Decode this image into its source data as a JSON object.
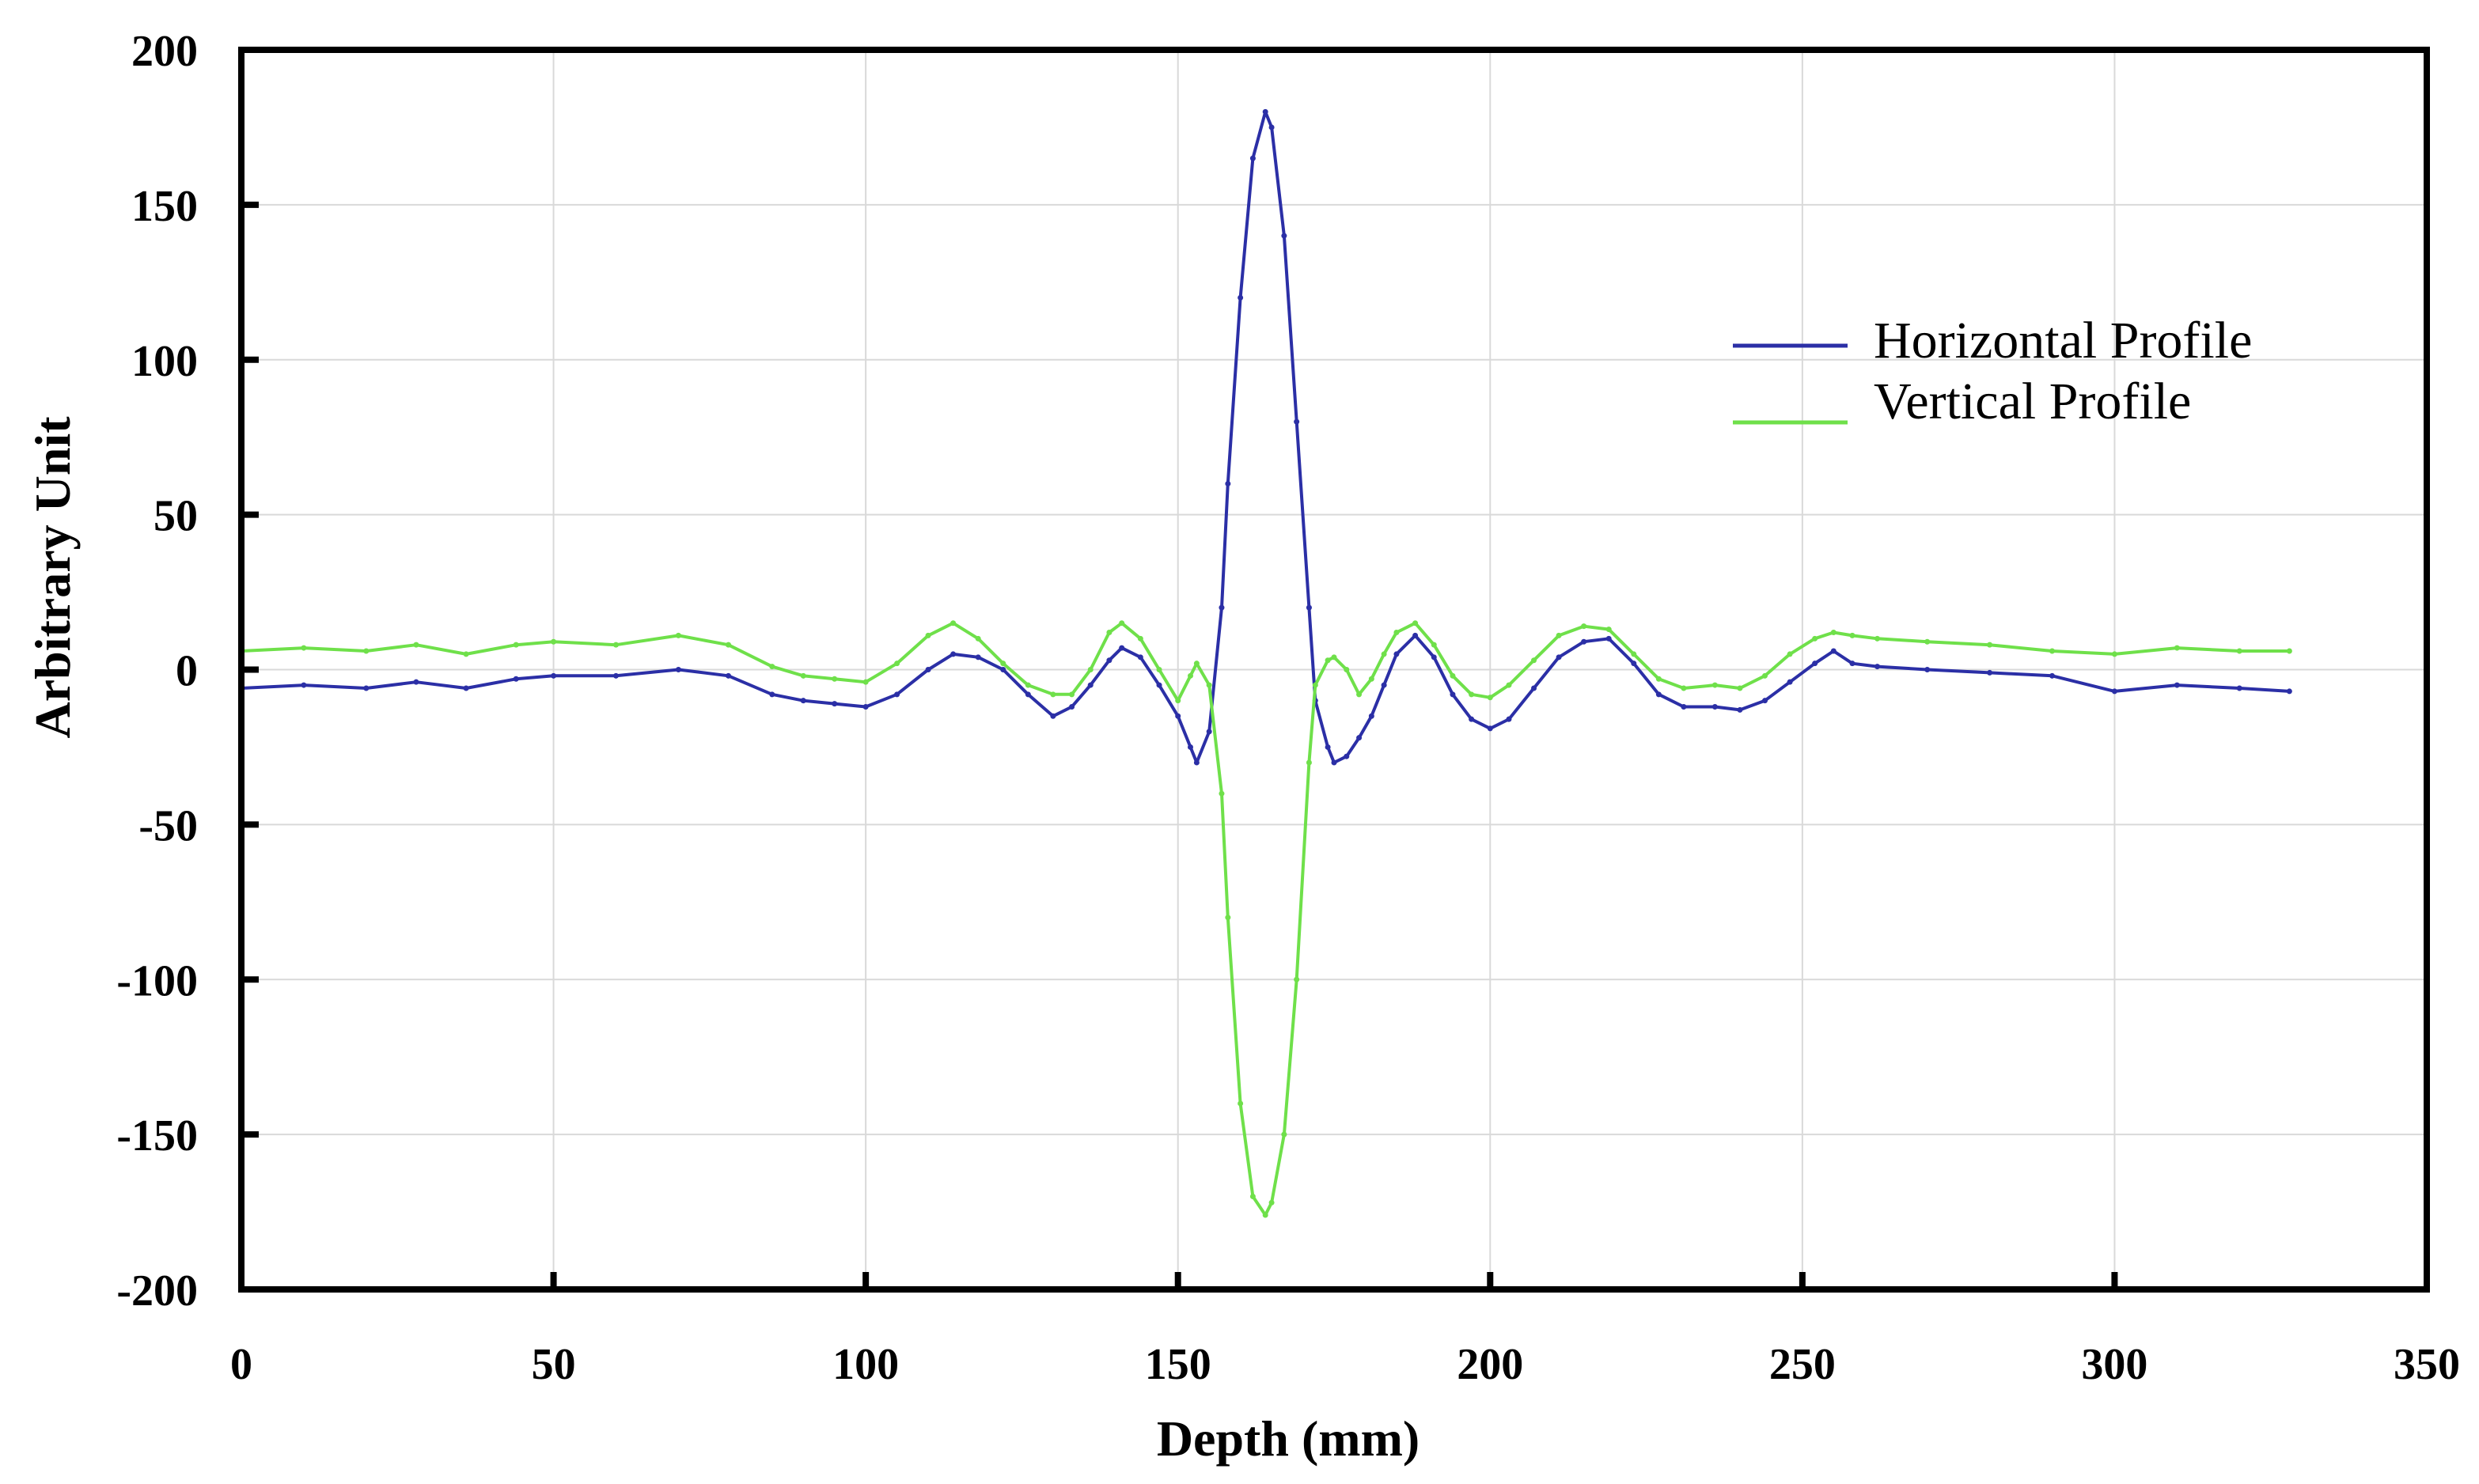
{
  "colors": {
    "horizontal": "#2b2fa6",
    "vertical": "#6fe04a",
    "axis": "#000000",
    "grid": "#d9d9d9",
    "background": "#ffffff"
  },
  "chart_data": {
    "type": "line",
    "title": "",
    "xlabel": "Depth (mm)",
    "ylabel": "Arbitrary Unit",
    "xlim": [
      0,
      350
    ],
    "ylim": [
      -200,
      200
    ],
    "x_ticks": [
      0,
      50,
      100,
      150,
      200,
      250,
      300,
      350
    ],
    "y_ticks": [
      -200,
      -150,
      -100,
      -50,
      0,
      50,
      100,
      150,
      200
    ],
    "grid": true,
    "legend_position": "top-right",
    "series": [
      {
        "name": "Horizontal Profile",
        "color": "#2b2fa6",
        "x": [
          0,
          10,
          20,
          28,
          36,
          44,
          50,
          60,
          70,
          78,
          85,
          90,
          95,
          100,
          105,
          110,
          114,
          118,
          122,
          126,
          130,
          133,
          136,
          139,
          141,
          144,
          147,
          150,
          152,
          153,
          155,
          157,
          158,
          160,
          162,
          164,
          165,
          167,
          169,
          171,
          172,
          174,
          175,
          177,
          179,
          181,
          183,
          185,
          188,
          191,
          194,
          197,
          200,
          203,
          207,
          211,
          215,
          219,
          223,
          227,
          231,
          236,
          240,
          244,
          248,
          252,
          255,
          258,
          262,
          270,
          280,
          290,
          300,
          310,
          320,
          328
        ],
        "y": [
          -6,
          -5,
          -6,
          -4,
          -6,
          -3,
          -2,
          -2,
          0,
          -2,
          -8,
          -10,
          -11,
          -12,
          -8,
          0,
          5,
          4,
          0,
          -8,
          -15,
          -12,
          -5,
          3,
          7,
          4,
          -5,
          -15,
          -25,
          -30,
          -20,
          20,
          60,
          120,
          165,
          180,
          175,
          140,
          80,
          20,
          -10,
          -25,
          -30,
          -28,
          -22,
          -15,
          -5,
          5,
          11,
          4,
          -8,
          -16,
          -19,
          -16,
          -6,
          4,
          9,
          10,
          2,
          -8,
          -12,
          -12,
          -13,
          -10,
          -4,
          2,
          6,
          2,
          1,
          0,
          -1,
          -2,
          -7,
          -5,
          -6,
          -7
        ]
      },
      {
        "name": "Vertical Profile",
        "color": "#6fe04a",
        "x": [
          0,
          10,
          20,
          28,
          36,
          44,
          50,
          60,
          70,
          78,
          85,
          90,
          95,
          100,
          105,
          110,
          114,
          118,
          122,
          126,
          130,
          133,
          136,
          139,
          141,
          144,
          147,
          150,
          152,
          153,
          155,
          157,
          158,
          160,
          162,
          164,
          165,
          167,
          169,
          171,
          172,
          174,
          175,
          177,
          179,
          181,
          183,
          185,
          188,
          191,
          194,
          197,
          200,
          203,
          207,
          211,
          215,
          219,
          223,
          227,
          231,
          236,
          240,
          244,
          248,
          252,
          255,
          258,
          262,
          270,
          280,
          290,
          300,
          310,
          320,
          328
        ],
        "y": [
          6,
          7,
          6,
          8,
          5,
          8,
          9,
          8,
          11,
          8,
          1,
          -2,
          -3,
          -4,
          2,
          11,
          15,
          10,
          2,
          -5,
          -8,
          -8,
          0,
          12,
          15,
          10,
          0,
          -10,
          -2,
          2,
          -5,
          -40,
          -80,
          -140,
          -170,
          -176,
          -172,
          -150,
          -100,
          -30,
          -5,
          3,
          4,
          0,
          -8,
          -3,
          5,
          12,
          15,
          8,
          -2,
          -8,
          -9,
          -5,
          3,
          11,
          14,
          13,
          5,
          -3,
          -6,
          -5,
          -6,
          -2,
          5,
          10,
          12,
          11,
          10,
          9,
          8,
          6,
          5,
          7,
          6,
          6
        ]
      }
    ]
  }
}
